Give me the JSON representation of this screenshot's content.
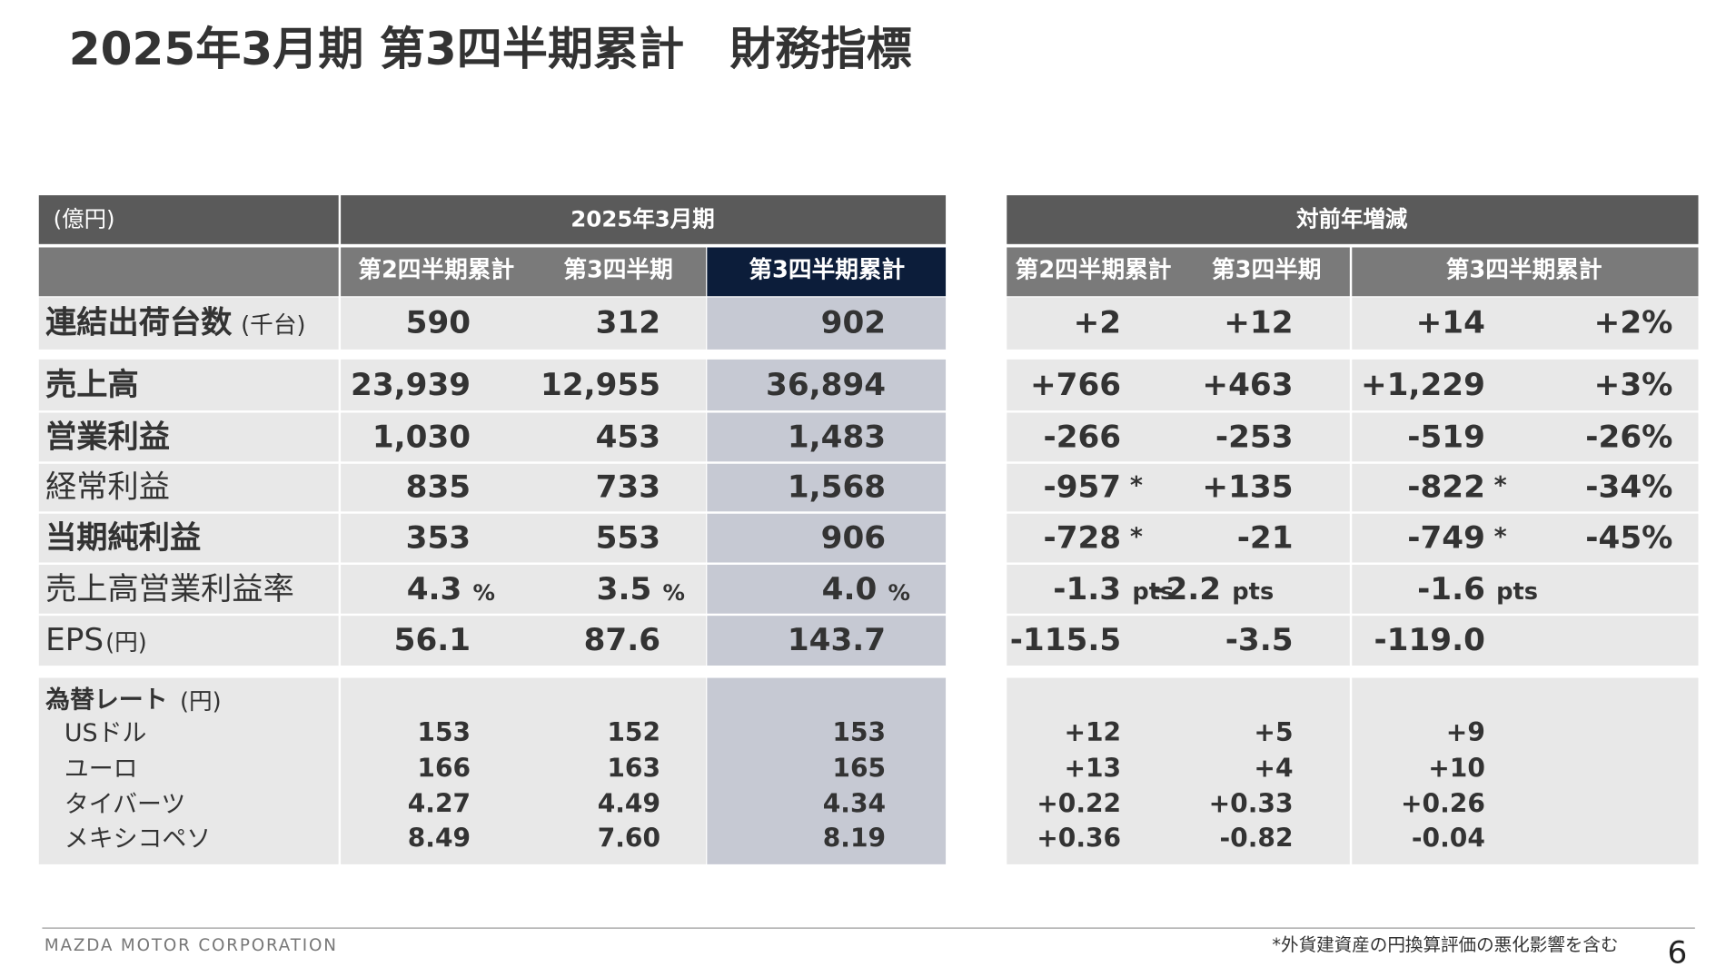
{
  "title": "2025年3月期 第3四半期累計　財務指標",
  "table": {
    "unit_label": "(億円)",
    "left_header": "2025年3月期",
    "right_header": "対前年増減",
    "left_columns": [
      "第2四半期累計",
      "第3四半期",
      "第3四半期累計"
    ],
    "right_columns": [
      "第2四半期累計",
      "第3四半期",
      "第3四半期累計"
    ],
    "rows": [
      {
        "label": "連結出荷台数",
        "label_unit": "(千台)",
        "bold": true,
        "values": [
          "590",
          "312",
          "902"
        ],
        "changes": [
          "+2",
          "+12",
          "+14"
        ],
        "change_pct": "+2%"
      },
      {
        "label": "売上高",
        "bold": true,
        "values": [
          "23,939",
          "12,955",
          "36,894"
        ],
        "changes": [
          "+766",
          "+463",
          "+1,229"
        ],
        "change_pct": "+3%"
      },
      {
        "label": "営業利益",
        "bold": true,
        "values": [
          "1,030",
          "453",
          "1,483"
        ],
        "changes": [
          "-266",
          "-253",
          "-519"
        ],
        "change_pct": "-26%"
      },
      {
        "label": "経常利益",
        "bold": false,
        "values": [
          "835",
          "733",
          "1,568"
        ],
        "changes": [
          {
            "value": "-957",
            "note": "*"
          },
          "+135",
          {
            "value": "-822",
            "note": "*"
          }
        ],
        "change_pct": "-34%"
      },
      {
        "label": "当期純利益",
        "bold": true,
        "values": [
          "353",
          "553",
          "906"
        ],
        "changes": [
          {
            "value": "-728",
            "note": "*"
          },
          "-21",
          {
            "value": "-749",
            "note": "*"
          }
        ],
        "change_pct": "-45%"
      },
      {
        "label": "売上高営業利益率",
        "bold": false,
        "values": [
          "4.3",
          "3.5",
          "4.0"
        ],
        "value_unit": "%",
        "changes": [
          "-1.3",
          "-2.2",
          "-1.6"
        ],
        "change_unit": "pts"
      },
      {
        "label": "EPS",
        "label_unit": "(円)",
        "bold": false,
        "values": [
          "56.1",
          "87.6",
          "143.7"
        ],
        "changes": [
          "-115.5",
          "-3.5",
          "-119.0"
        ]
      }
    ],
    "fx": {
      "label": "為替レート",
      "label_unit": "(円)",
      "rows": [
        {
          "label": "USドル",
          "values": [
            "153",
            "152",
            "153"
          ],
          "changes": [
            "+12",
            "+5",
            "+9"
          ]
        },
        {
          "label": "ユーロ",
          "values": [
            "166",
            "163",
            "165"
          ],
          "changes": [
            "+13",
            "+4",
            "+10"
          ]
        },
        {
          "label": "タイバーツ",
          "values": [
            "4.27",
            "4.49",
            "4.34"
          ],
          "changes": [
            "+0.22",
            "+0.33",
            "+0.26"
          ]
        },
        {
          "label": "メキシコペソ",
          "values": [
            "8.49",
            "7.60",
            "8.19"
          ],
          "changes": [
            "+0.36",
            "-0.82",
            "-0.04"
          ]
        }
      ]
    }
  },
  "footer": {
    "company": "MAZDA MOTOR CORPORATION",
    "footnote": "*外貨建資産の円換算評価の悪化影響を含む",
    "page": "6"
  }
}
